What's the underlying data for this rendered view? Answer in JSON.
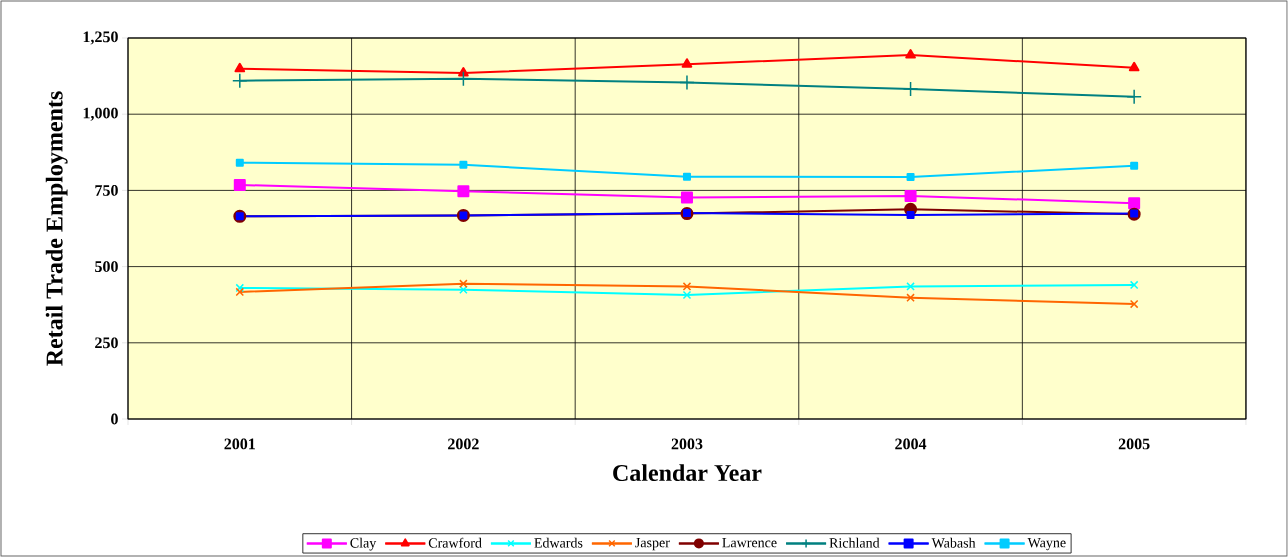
{
  "chart_data": {
    "type": "line",
    "xlabel": "Calendar Year",
    "ylabel": "Retail Trade Employments",
    "categories": [
      "2001",
      "2002",
      "2003",
      "2004",
      "2005"
    ],
    "series": [
      {
        "name": "Clay",
        "color": "#ff00ff",
        "marker": "square",
        "values": [
          768,
          747,
          727,
          732,
          708
        ]
      },
      {
        "name": "Crawford",
        "color": "#ff0000",
        "marker": "triangle",
        "values": [
          1149,
          1135,
          1164,
          1194,
          1152
        ]
      },
      {
        "name": "Edwards",
        "color": "#00ffff",
        "marker": "cross",
        "values": [
          430,
          424,
          407,
          435,
          440
        ]
      },
      {
        "name": "Jasper",
        "color": "#ff6600",
        "marker": "cross",
        "values": [
          417,
          444,
          435,
          398,
          377
        ]
      },
      {
        "name": "Lawrence",
        "color": "#800000",
        "marker": "circle",
        "values": [
          665,
          668,
          674,
          688,
          672
        ]
      },
      {
        "name": "Richland",
        "color": "#008080",
        "marker": "plus",
        "values": [
          1110,
          1116,
          1104,
          1083,
          1057
        ]
      },
      {
        "name": "Wabash",
        "color": "#0000ff",
        "marker": "square",
        "values": [
          665,
          668,
          676,
          669,
          674
        ]
      },
      {
        "name": "Wayne",
        "color": "#00ccff",
        "marker": "square",
        "values": [
          841,
          834,
          795,
          794,
          831
        ]
      }
    ],
    "ylim": [
      0,
      1250
    ],
    "yticks": [
      0,
      250,
      500,
      750,
      {
        "value": 1000,
        "label": "1,000"
      },
      {
        "value": 1250,
        "label": "1,250"
      }
    ],
    "grid": true,
    "legend": "bottom",
    "line_style": "solid"
  }
}
